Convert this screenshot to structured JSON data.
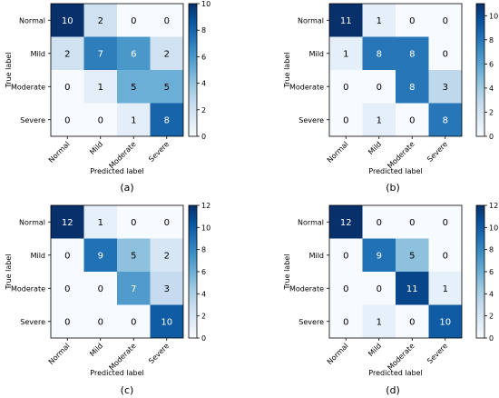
{
  "chart_data": [
    {
      "type": "heatmap",
      "panel_label": "(a)",
      "row_labels": [
        "Normal",
        "Mild",
        "Moderate",
        "Severe"
      ],
      "col_labels": [
        "Normal",
        "Mild",
        "Moderate",
        "Severe"
      ],
      "xlabel": "Predicted label",
      "ylabel": "True label",
      "values": [
        [
          10,
          2,
          0,
          0
        ],
        [
          2,
          7,
          6,
          2
        ],
        [
          0,
          1,
          5,
          5
        ],
        [
          0,
          0,
          1,
          8
        ]
      ],
      "colorbar": {
        "vmin": 0,
        "vmax": 10,
        "ticks": [
          0,
          2,
          4,
          6,
          8,
          10
        ]
      },
      "colormap": "Blues"
    },
    {
      "type": "heatmap",
      "panel_label": "(b)",
      "row_labels": [
        "Normal",
        "Mild",
        "Moderate",
        "Severe"
      ],
      "col_labels": [
        "Normal",
        "Mild",
        "Moderate",
        "Severe"
      ],
      "xlabel": "Predicted label",
      "ylabel": "True label",
      "values": [
        [
          11,
          1,
          0,
          0
        ],
        [
          1,
          8,
          8,
          0
        ],
        [
          0,
          0,
          8,
          3
        ],
        [
          0,
          1,
          0,
          8
        ]
      ],
      "colorbar": {
        "vmin": 0,
        "vmax": 11,
        "ticks": [
          0,
          2,
          4,
          6,
          8,
          10
        ]
      },
      "colormap": "Blues"
    },
    {
      "type": "heatmap",
      "panel_label": "(c)",
      "row_labels": [
        "Normal",
        "Mild",
        "Moderate",
        "Severe"
      ],
      "col_labels": [
        "Normal",
        "Mild",
        "Moderate",
        "Severe"
      ],
      "xlabel": "Predicted label",
      "ylabel": "True label",
      "values": [
        [
          12,
          1,
          0,
          0
        ],
        [
          0,
          9,
          5,
          2
        ],
        [
          0,
          0,
          7,
          3
        ],
        [
          0,
          0,
          0,
          10
        ]
      ],
      "colorbar": {
        "vmin": 0,
        "vmax": 12,
        "ticks": [
          0,
          2,
          4,
          6,
          8,
          10,
          12
        ]
      },
      "colormap": "Blues"
    },
    {
      "type": "heatmap",
      "panel_label": "(d)",
      "row_labels": [
        "Normal",
        "Mild",
        "Moderate",
        "Severe"
      ],
      "col_labels": [
        "Normal",
        "Mild",
        "Moderate",
        "Severe"
      ],
      "xlabel": "Predicted label",
      "ylabel": "True label",
      "values": [
        [
          12,
          0,
          0,
          0
        ],
        [
          0,
          9,
          5,
          0
        ],
        [
          0,
          0,
          11,
          1
        ],
        [
          0,
          1,
          0,
          10
        ]
      ],
      "colorbar": {
        "vmin": 0,
        "vmax": 12,
        "ticks": [
          0,
          2,
          4,
          6,
          8,
          10,
          12
        ]
      },
      "colormap": "Blues"
    }
  ]
}
